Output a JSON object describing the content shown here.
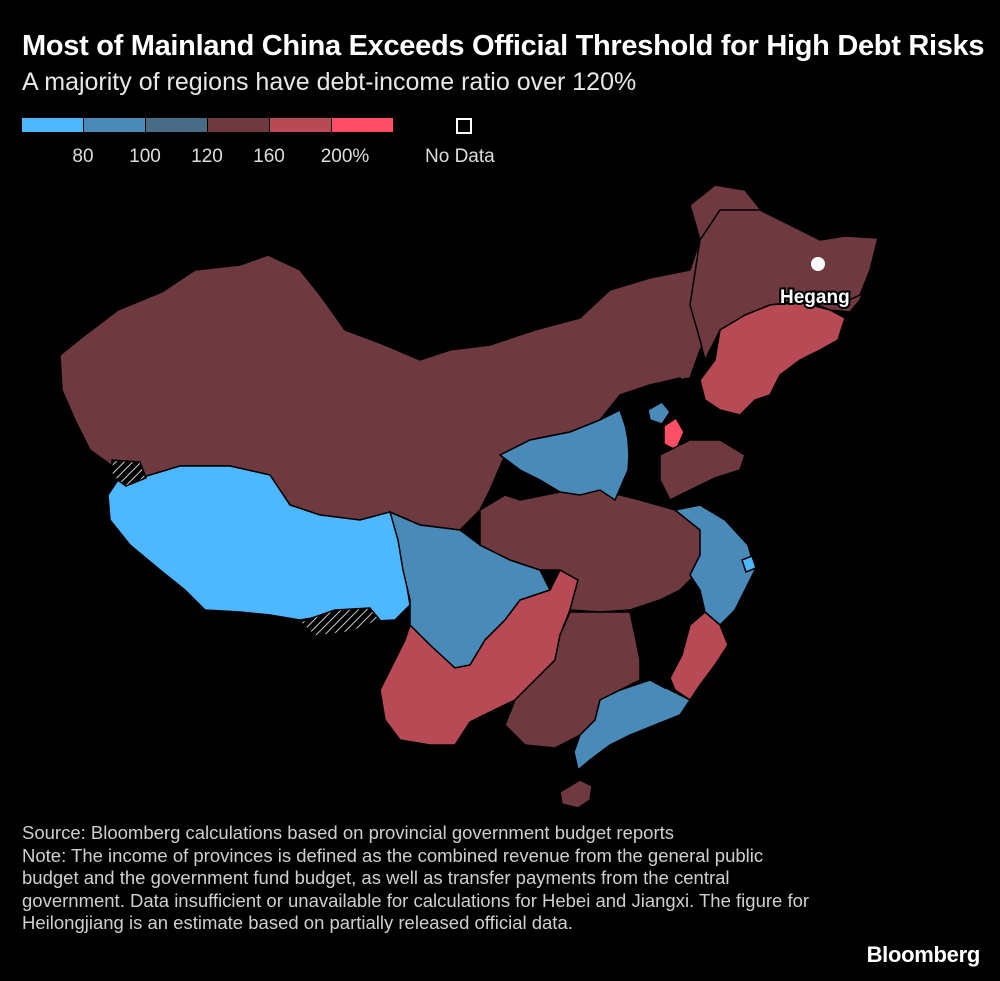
{
  "title": "Most of Mainland China Exceeds Official Threshold for High Debt Risks",
  "subtitle": "A majority of regions have debt-income ratio over 120%",
  "legend": {
    "colors": [
      "#4db8ff",
      "#4a8ab8",
      "#476a85",
      "#6e3a40",
      "#b84a55",
      "#ff4e66"
    ],
    "ticks": [
      "80",
      "100",
      "120",
      "160",
      "200%"
    ],
    "nodata_label": "No Data"
  },
  "map": {
    "marker_label": "Hegang"
  },
  "source": {
    "source_line": "Source: Bloomberg calculations based on provincial government budget reports",
    "note": "Note: The income of provinces is defined as the combined revenue from the general public budget and the government fund budget, as well as transfer payments from the central government. Data insufficient or unavailable for calculations for Hebei and Jiangxi. The figure for Heilongjiang is an estimate based on partially released official data."
  },
  "brand": "Bloomberg"
}
